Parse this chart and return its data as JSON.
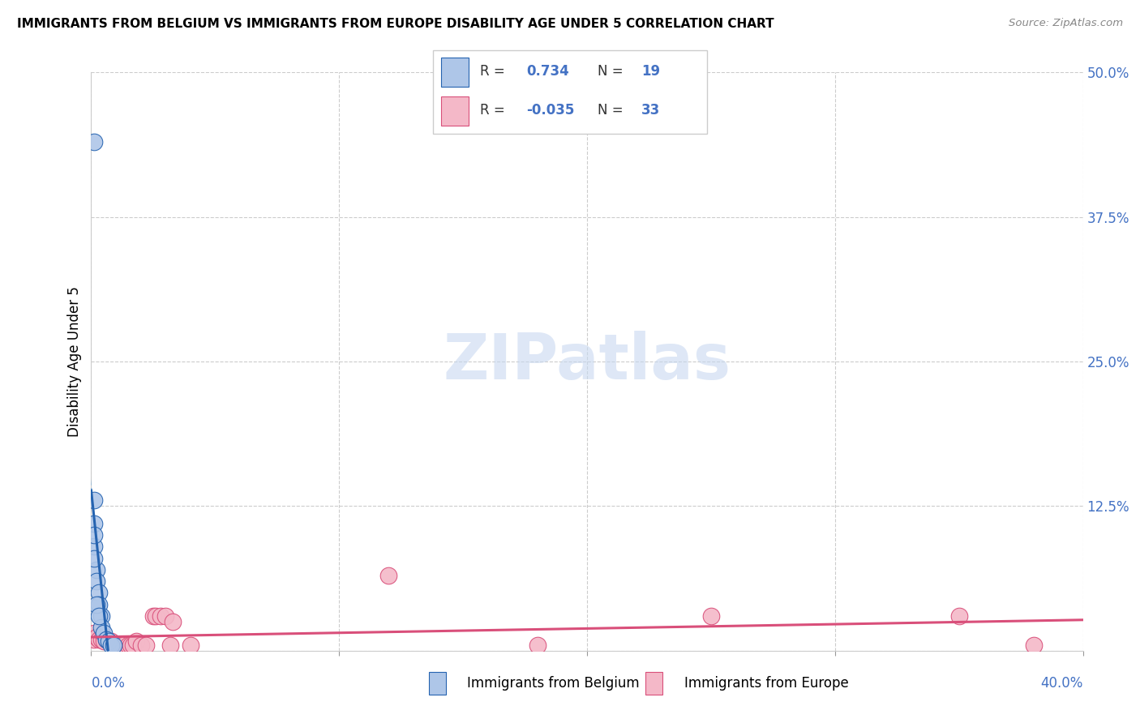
{
  "title": "IMMIGRANTS FROM BELGIUM VS IMMIGRANTS FROM EUROPE DISABILITY AGE UNDER 5 CORRELATION CHART",
  "source": "Source: ZipAtlas.com",
  "ylabel": "Disability Age Under 5",
  "xlabel_belgium": "Immigrants from Belgium",
  "xlabel_europe": "Immigrants from Europe",
  "belgium_R": 0.734,
  "belgium_N": 19,
  "europe_R": -0.035,
  "europe_N": 33,
  "xlim": [
    0.0,
    0.4
  ],
  "ylim": [
    0.0,
    0.5
  ],
  "yticks": [
    0.0,
    0.125,
    0.25,
    0.375,
    0.5
  ],
  "ytick_labels": [
    "",
    "12.5%",
    "25.0%",
    "37.5%",
    "50.0%"
  ],
  "color_belgium": "#aec6e8",
  "color_europe": "#f4b8c8",
  "color_belgium_line": "#2563b0",
  "color_europe_line": "#d94f7a",
  "color_belgium_dashed": "#8ab4d8",
  "color_axis": "#4472c4",
  "watermark_color": "#c8d8f0",
  "grid_color": "#cccccc",
  "belgium_x": [
    0.001,
    0.001,
    0.001,
    0.001,
    0.002,
    0.002,
    0.003,
    0.003,
    0.004,
    0.004,
    0.005,
    0.006,
    0.007,
    0.008,
    0.009,
    0.001,
    0.002,
    0.003,
    0.001
  ],
  "belgium_y": [
    0.44,
    0.13,
    0.11,
    0.09,
    0.07,
    0.06,
    0.05,
    0.04,
    0.03,
    0.02,
    0.015,
    0.01,
    0.008,
    0.005,
    0.005,
    0.08,
    0.04,
    0.03,
    0.1
  ],
  "europe_x": [
    0.001,
    0.001,
    0.002,
    0.003,
    0.004,
    0.005,
    0.005,
    0.006,
    0.007,
    0.008,
    0.009,
    0.01,
    0.011,
    0.012,
    0.013,
    0.015,
    0.016,
    0.017,
    0.018,
    0.02,
    0.022,
    0.025,
    0.026,
    0.028,
    0.03,
    0.032,
    0.033,
    0.04,
    0.12,
    0.18,
    0.25,
    0.35,
    0.38
  ],
  "europe_y": [
    0.015,
    0.01,
    0.012,
    0.01,
    0.01,
    0.012,
    0.008,
    0.01,
    0.008,
    0.008,
    0.005,
    0.005,
    0.005,
    0.005,
    0.005,
    0.005,
    0.005,
    0.005,
    0.008,
    0.005,
    0.005,
    0.03,
    0.03,
    0.03,
    0.03,
    0.005,
    0.025,
    0.005,
    0.065,
    0.005,
    0.03,
    0.03,
    0.005
  ]
}
